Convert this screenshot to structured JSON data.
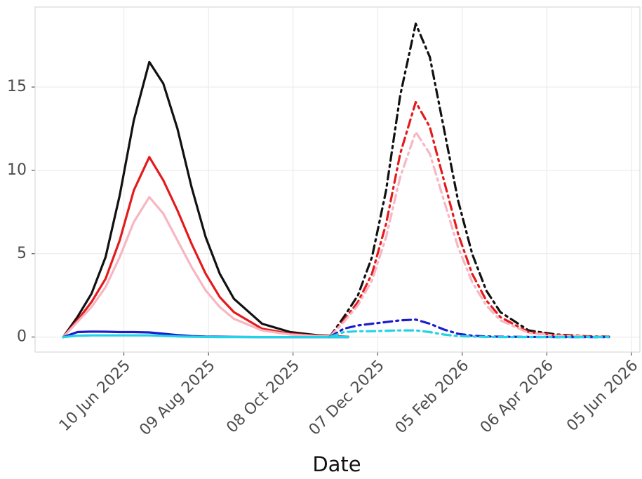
{
  "chart_data": {
    "type": "line",
    "x_label": "Date",
    "xlim": [
      "2025-04-08",
      "2026-06-11"
    ],
    "xticks": [
      {
        "value": "2025-06-10",
        "label": "10 Jun 2025"
      },
      {
        "value": "2025-08-09",
        "label": "09 Aug 2025"
      },
      {
        "value": "2025-10-08",
        "label": "08 Oct 2025"
      },
      {
        "value": "2025-12-07",
        "label": "07 Dec 2025"
      },
      {
        "value": "2026-02-05",
        "label": "05 Feb 2026"
      },
      {
        "value": "2026-04-06",
        "label": "06 Apr 2026"
      },
      {
        "value": "2026-06-05",
        "label": "05 Jun 2026"
      }
    ],
    "ylim": [
      -0.9,
      19.8
    ],
    "yticks": [
      0,
      5,
      10,
      15
    ],
    "grid": true,
    "series": [
      {
        "color": "#111111",
        "dash": "solid",
        "x": [
          "2025-04-28",
          "2025-05-08",
          "2025-05-18",
          "2025-05-28",
          "2025-06-07",
          "2025-06-17",
          "2025-06-28",
          "2025-07-08",
          "2025-07-18",
          "2025-07-28",
          "2025-08-07",
          "2025-08-17",
          "2025-08-27",
          "2025-09-16",
          "2025-10-06",
          "2025-10-26",
          "2025-11-16"
        ],
        "values": [
          0,
          1.2,
          2.6,
          4.8,
          8.5,
          13,
          16.5,
          15.2,
          12.5,
          9,
          6,
          3.8,
          2.3,
          0.8,
          0.3,
          0.1,
          0.02
        ]
      },
      {
        "color": "#e41a1c",
        "dash": "solid",
        "x": [
          "2025-04-28",
          "2025-05-08",
          "2025-05-18",
          "2025-05-28",
          "2025-06-07",
          "2025-06-17",
          "2025-06-28",
          "2025-07-08",
          "2025-07-18",
          "2025-07-28",
          "2025-08-07",
          "2025-08-17",
          "2025-08-27",
          "2025-09-16",
          "2025-10-06",
          "2025-10-26",
          "2025-11-16"
        ],
        "values": [
          0,
          1.0,
          2.1,
          3.5,
          5.8,
          8.8,
          10.8,
          9.4,
          7.6,
          5.6,
          3.8,
          2.4,
          1.5,
          0.5,
          0.2,
          0.06,
          0.01
        ]
      },
      {
        "color": "#f7b6c2",
        "dash": "solid",
        "x": [
          "2025-04-28",
          "2025-05-08",
          "2025-05-18",
          "2025-05-28",
          "2025-06-07",
          "2025-06-17",
          "2025-06-28",
          "2025-07-08",
          "2025-07-18",
          "2025-07-28",
          "2025-08-07",
          "2025-08-17",
          "2025-08-27",
          "2025-09-16",
          "2025-10-06",
          "2025-10-26",
          "2025-11-16"
        ],
        "values": [
          0,
          0.9,
          1.8,
          3.0,
          4.8,
          6.9,
          8.4,
          7.4,
          5.8,
          4.2,
          2.8,
          1.8,
          1.1,
          0.4,
          0.15,
          0.05,
          0.01
        ]
      },
      {
        "color": "#1c1ccf",
        "dash": "solid",
        "x": [
          "2025-04-28",
          "2025-05-08",
          "2025-05-18",
          "2025-05-28",
          "2025-06-07",
          "2025-06-17",
          "2025-06-28",
          "2025-07-08",
          "2025-07-18",
          "2025-07-28",
          "2025-08-07",
          "2025-08-17",
          "2025-08-27",
          "2025-09-16",
          "2025-10-06",
          "2025-10-26",
          "2025-11-16"
        ],
        "values": [
          0,
          0.3,
          0.33,
          0.32,
          0.3,
          0.3,
          0.28,
          0.2,
          0.12,
          0.06,
          0.03,
          0.02,
          0.01,
          0,
          0,
          0,
          0
        ]
      },
      {
        "color": "#22d3e6",
        "dash": "solid",
        "x": [
          "2025-04-28",
          "2025-05-08",
          "2025-05-18",
          "2025-05-28",
          "2025-06-07",
          "2025-06-17",
          "2025-06-28",
          "2025-07-08",
          "2025-07-18",
          "2025-07-28",
          "2025-08-07",
          "2025-08-17",
          "2025-08-27",
          "2025-09-16",
          "2025-10-06",
          "2025-10-26",
          "2025-11-16"
        ],
        "values": [
          0,
          0.08,
          0.1,
          0.1,
          0.1,
          0.1,
          0.1,
          0.07,
          0.04,
          0.02,
          0.01,
          0,
          0,
          0,
          0,
          0,
          0
        ]
      },
      {
        "color": "#111111",
        "dash": "dotdash",
        "x": [
          "2025-11-03",
          "2025-11-13",
          "2025-11-23",
          "2025-12-03",
          "2025-12-13",
          "2025-12-23",
          "2026-01-03",
          "2026-01-13",
          "2026-01-23",
          "2026-02-02",
          "2026-02-12",
          "2026-02-22",
          "2026-03-04",
          "2026-03-24",
          "2026-04-13",
          "2026-05-03",
          "2026-05-20"
        ],
        "values": [
          0,
          1.2,
          2.5,
          4.8,
          8.8,
          14.5,
          18.8,
          16.8,
          12.5,
          8.2,
          5,
          2.8,
          1.5,
          0.4,
          0.15,
          0.05,
          0.02
        ]
      },
      {
        "color": "#e41a1c",
        "dash": "dotdash",
        "x": [
          "2025-11-03",
          "2025-11-13",
          "2025-11-23",
          "2025-12-03",
          "2025-12-13",
          "2025-12-23",
          "2026-01-03",
          "2026-01-13",
          "2026-01-23",
          "2026-02-02",
          "2026-02-12",
          "2026-02-22",
          "2026-03-04",
          "2026-03-24",
          "2026-04-13",
          "2026-05-03",
          "2026-05-20"
        ],
        "values": [
          0,
          1.0,
          2.1,
          3.8,
          6.8,
          11,
          14.1,
          12.6,
          9.4,
          6.2,
          3.8,
          2.2,
          1.2,
          0.3,
          0.1,
          0.04,
          0.01
        ]
      },
      {
        "color": "#f7b6c2",
        "dash": "dotdash",
        "x": [
          "2025-11-03",
          "2025-11-13",
          "2025-11-23",
          "2025-12-03",
          "2025-12-13",
          "2025-12-23",
          "2026-01-03",
          "2026-01-13",
          "2026-01-23",
          "2026-02-02",
          "2026-02-12",
          "2026-02-22",
          "2026-03-04",
          "2026-03-24",
          "2026-04-13",
          "2026-05-03",
          "2026-05-20"
        ],
        "values": [
          0,
          0.9,
          1.9,
          3.4,
          6.0,
          9.6,
          12.3,
          11.0,
          8.2,
          5.4,
          3.3,
          1.9,
          1.0,
          0.25,
          0.09,
          0.03,
          0.01
        ]
      },
      {
        "color": "#1c1ccf",
        "dash": "dotdash",
        "x": [
          "2025-11-03",
          "2025-11-13",
          "2025-11-23",
          "2025-12-03",
          "2025-12-13",
          "2025-12-23",
          "2026-01-03",
          "2026-01-13",
          "2026-01-23",
          "2026-02-02",
          "2026-02-12",
          "2026-02-22",
          "2026-03-04",
          "2026-03-24",
          "2026-04-13",
          "2026-05-03",
          "2026-05-20"
        ],
        "values": [
          0,
          0.5,
          0.7,
          0.8,
          0.9,
          1.0,
          1.05,
          0.8,
          0.45,
          0.2,
          0.08,
          0.04,
          0.02,
          0.01,
          0,
          0,
          0
        ]
      },
      {
        "color": "#22d3e6",
        "dash": "dotdash",
        "x": [
          "2025-11-03",
          "2025-11-13",
          "2025-11-23",
          "2025-12-03",
          "2025-12-13",
          "2025-12-23",
          "2026-01-03",
          "2026-01-13",
          "2026-01-23",
          "2026-02-02",
          "2026-02-12",
          "2026-02-22",
          "2026-03-04",
          "2026-03-24",
          "2026-04-13",
          "2026-05-03",
          "2026-05-20"
        ],
        "values": [
          0,
          0.3,
          0.35,
          0.35,
          0.38,
          0.4,
          0.4,
          0.3,
          0.15,
          0.06,
          0.03,
          0.01,
          0,
          0,
          0,
          0,
          0
        ]
      }
    ]
  }
}
